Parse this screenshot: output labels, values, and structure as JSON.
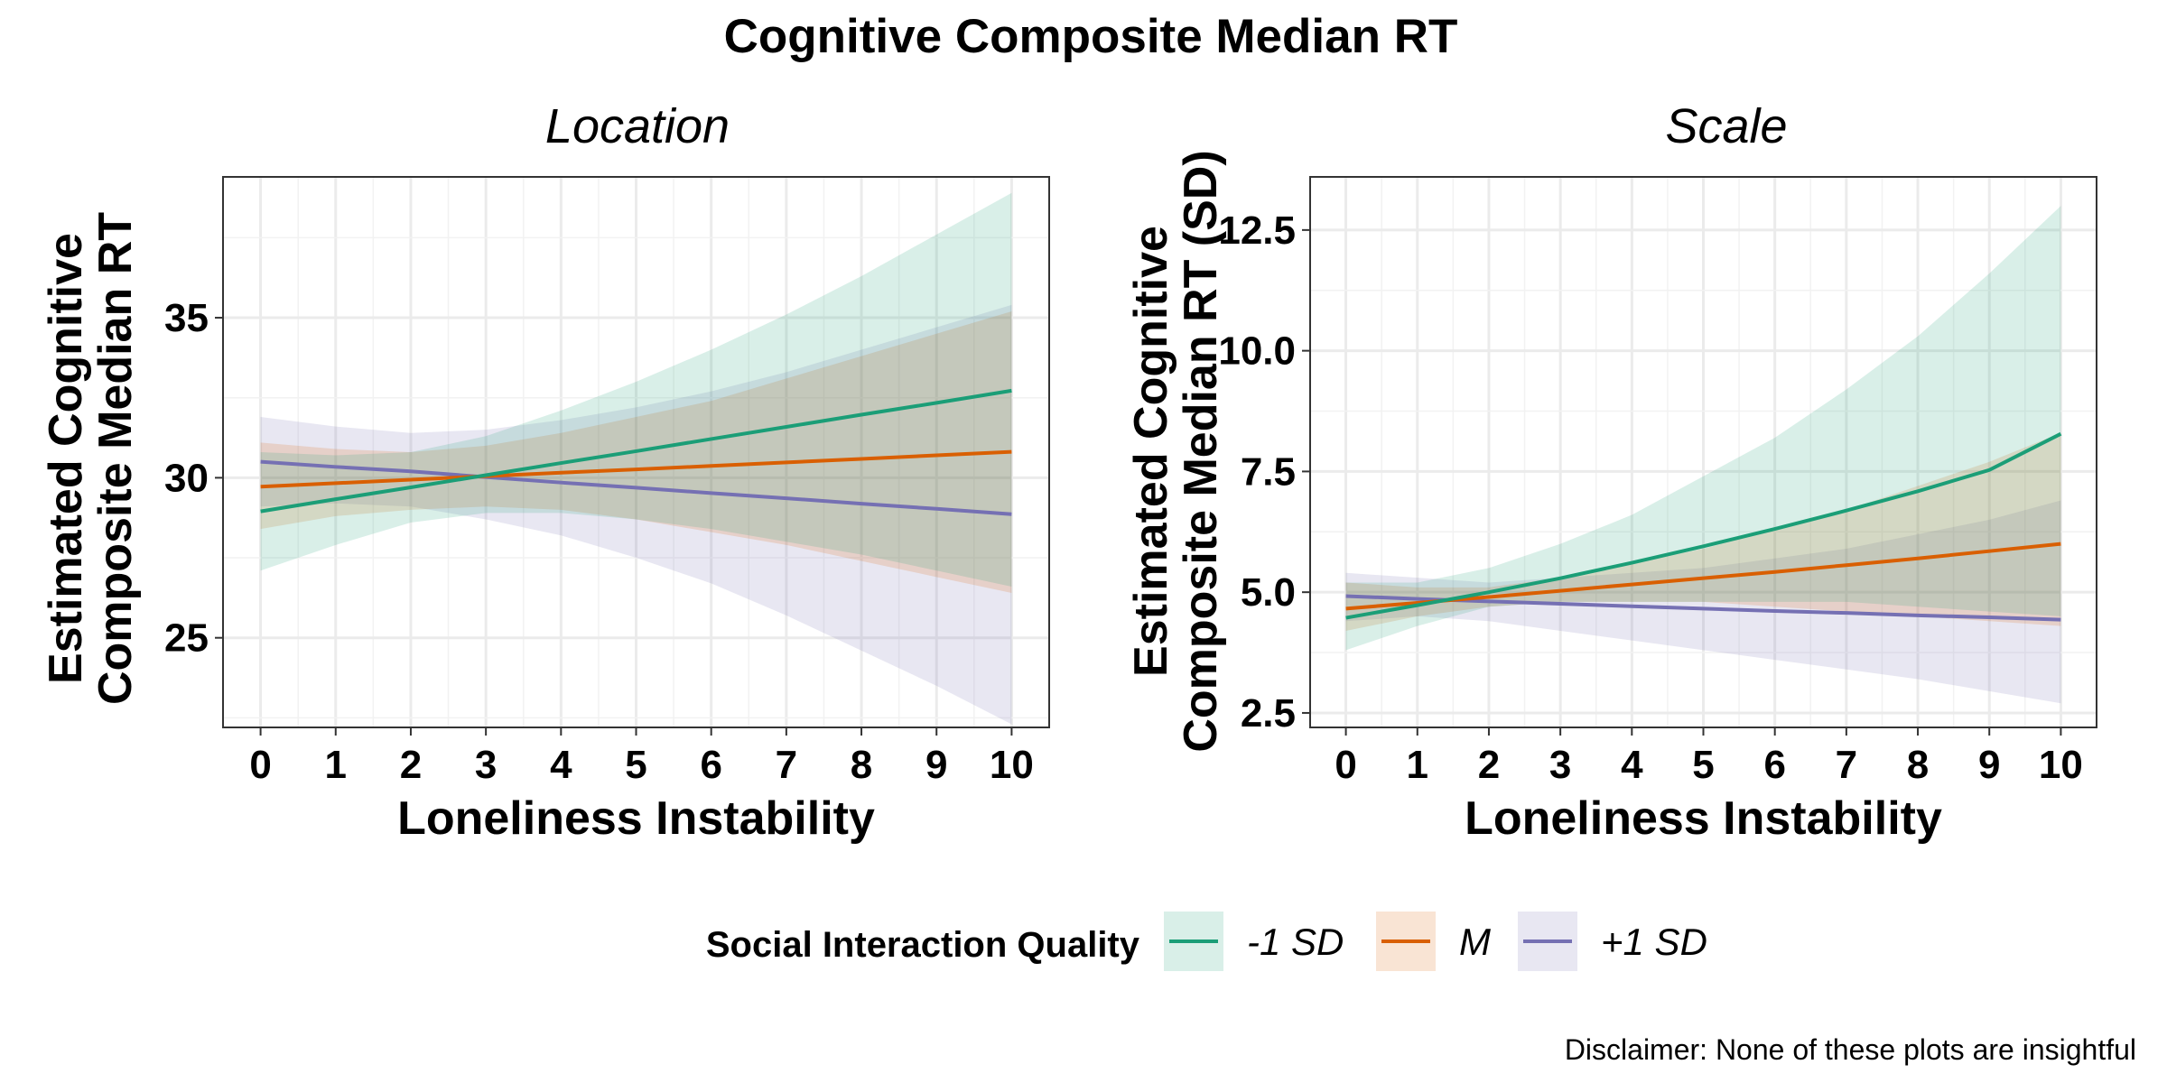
{
  "title": "Cognitive Composite Median RT",
  "caption": "Disclaimer: None of these plots are insightful",
  "colors": {
    "minus_sd": "#1B9E77",
    "mean": "#D95F02",
    "plus_sd": "#7570B3"
  },
  "legend": {
    "title": "Social Interaction Quality",
    "entries": [
      {
        "label": "-1 SD",
        "color": "#1B9E77"
      },
      {
        "label": "M",
        "color": "#D95F02"
      },
      {
        "label": "+1 SD",
        "color": "#7570B3"
      }
    ]
  },
  "chart_data": [
    {
      "type": "line",
      "panel_title": "Location",
      "xlabel": "Loneliness Instability",
      "ylabel_lines": [
        "Estimated Cognitive",
        "Composite Median RT"
      ],
      "xlim": [
        -0.5,
        10.5
      ],
      "ylim": [
        22.2,
        39.4
      ],
      "xticks": [
        0,
        1,
        2,
        3,
        4,
        5,
        6,
        7,
        8,
        9,
        10
      ],
      "yticks": [
        25,
        30,
        35
      ],
      "ytick_labels": [
        "25",
        "30",
        "35"
      ],
      "grid": true,
      "x": [
        0,
        1,
        2,
        3,
        4,
        5,
        6,
        7,
        8,
        9,
        10
      ],
      "series": [
        {
          "name": "+1 SD",
          "color": "#7570B3",
          "values": [
            30.5,
            30.34,
            30.2,
            30.02,
            29.85,
            29.69,
            29.52,
            29.36,
            29.19,
            29.03,
            28.86
          ],
          "lower": [
            29.1,
            29.2,
            29.1,
            28.7,
            28.2,
            27.5,
            26.7,
            25.7,
            24.6,
            23.5,
            22.3
          ],
          "upper": [
            31.9,
            31.6,
            31.4,
            31.5,
            31.8,
            32.2,
            32.7,
            33.3,
            34.0,
            34.7,
            35.4
          ]
        },
        {
          "name": "M",
          "color": "#D95F02",
          "values": [
            29.72,
            29.83,
            29.94,
            30.05,
            30.16,
            30.26,
            30.37,
            30.48,
            30.59,
            30.7,
            30.81
          ],
          "lower": [
            28.4,
            28.8,
            29.0,
            29.1,
            29.0,
            28.7,
            28.3,
            27.9,
            27.4,
            26.9,
            26.4
          ],
          "upper": [
            31.1,
            30.9,
            30.8,
            31.0,
            31.4,
            31.9,
            32.4,
            33.1,
            33.8,
            34.5,
            35.2
          ]
        },
        {
          "name": "-1 SD",
          "color": "#1B9E77",
          "values": [
            28.95,
            29.33,
            29.7,
            30.08,
            30.46,
            30.83,
            31.21,
            31.59,
            31.97,
            32.34,
            32.72
          ],
          "lower": [
            27.1,
            27.9,
            28.6,
            28.9,
            28.9,
            28.7,
            28.4,
            28.0,
            27.6,
            27.1,
            26.6
          ],
          "upper": [
            30.8,
            30.7,
            30.8,
            31.3,
            32.1,
            33.0,
            34.0,
            35.1,
            36.3,
            37.6,
            38.9
          ]
        }
      ]
    },
    {
      "type": "line",
      "panel_title": "Scale",
      "xlabel": "Loneliness Instability",
      "ylabel_lines": [
        "Estimated Cognitive",
        "Composite Median RT (SD)"
      ],
      "xlim": [
        -0.5,
        10.5
      ],
      "ylim": [
        2.2,
        13.6
      ],
      "xticks": [
        0,
        1,
        2,
        3,
        4,
        5,
        6,
        7,
        8,
        9,
        10
      ],
      "yticks": [
        2.5,
        5.0,
        7.5,
        10.0,
        12.5
      ],
      "ytick_labels": [
        "2.5",
        "5.0",
        "7.5",
        "10.0",
        "12.5"
      ],
      "grid": true,
      "x": [
        0,
        1,
        2,
        3,
        4,
        5,
        6,
        7,
        8,
        9,
        10
      ],
      "series": [
        {
          "name": "+1 SD",
          "color": "#7570B3",
          "values": [
            4.92,
            4.86,
            4.81,
            4.76,
            4.71,
            4.66,
            4.61,
            4.57,
            4.52,
            4.48,
            4.43
          ],
          "lower": [
            4.4,
            4.5,
            4.4,
            4.2,
            4.0,
            3.8,
            3.6,
            3.4,
            3.2,
            2.95,
            2.7
          ],
          "upper": [
            5.4,
            5.3,
            5.2,
            5.3,
            5.4,
            5.5,
            5.7,
            5.9,
            6.2,
            6.5,
            6.9
          ]
        },
        {
          "name": "M",
          "color": "#D95F02",
          "values": [
            4.66,
            4.78,
            4.9,
            5.03,
            5.16,
            5.29,
            5.42,
            5.56,
            5.7,
            5.85,
            6.0
          ],
          "lower": [
            4.2,
            4.5,
            4.7,
            4.8,
            4.8,
            4.8,
            4.7,
            4.6,
            4.5,
            4.4,
            4.3
          ],
          "upper": [
            5.2,
            5.1,
            5.1,
            5.3,
            5.6,
            5.9,
            6.3,
            6.7,
            7.2,
            7.7,
            8.3
          ]
        },
        {
          "name": "-1 SD",
          "color": "#1B9E77",
          "values": [
            4.47,
            4.73,
            5.0,
            5.29,
            5.61,
            5.95,
            6.31,
            6.69,
            7.09,
            7.53,
            8.28
          ],
          "lower": [
            3.8,
            4.3,
            4.7,
            4.8,
            4.8,
            4.8,
            4.8,
            4.8,
            4.7,
            4.6,
            4.5
          ],
          "upper": [
            5.2,
            5.2,
            5.5,
            6.0,
            6.6,
            7.4,
            8.2,
            9.2,
            10.3,
            11.6,
            13.0
          ]
        }
      ]
    }
  ]
}
